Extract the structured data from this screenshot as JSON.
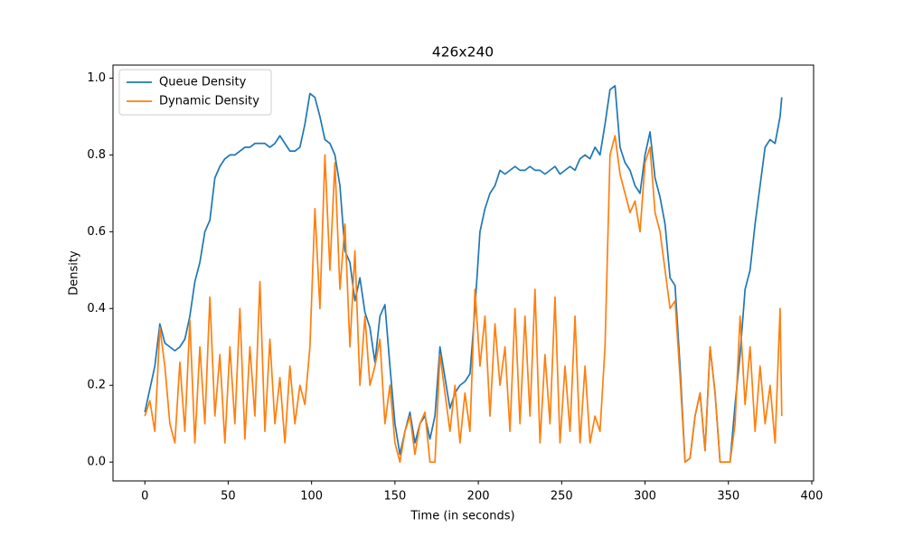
{
  "chart_data": {
    "type": "line",
    "title": "426x240",
    "x_label": "Time (in seconds)",
    "y_label": "Density",
    "x": [
      0,
      3,
      6,
      9,
      12,
      15,
      18,
      21,
      24,
      27,
      30,
      33,
      36,
      39,
      42,
      45,
      48,
      51,
      54,
      57,
      60,
      63,
      66,
      69,
      72,
      75,
      78,
      81,
      84,
      87,
      90,
      93,
      96,
      99,
      102,
      105,
      108,
      111,
      114,
      117,
      120,
      123,
      126,
      129,
      132,
      135,
      138,
      141,
      144,
      147,
      150,
      153,
      156,
      159,
      162,
      165,
      168,
      171,
      174,
      177,
      180,
      183,
      186,
      189,
      192,
      195,
      198,
      201,
      204,
      207,
      210,
      213,
      216,
      219,
      222,
      225,
      228,
      231,
      234,
      237,
      240,
      243,
      246,
      249,
      252,
      255,
      258,
      261,
      264,
      267,
      270,
      273,
      276,
      279,
      282,
      285,
      288,
      291,
      294,
      297,
      300,
      303,
      306,
      309,
      312,
      315,
      318,
      321,
      324,
      327,
      330,
      333,
      336,
      339,
      342,
      345,
      348,
      351,
      354,
      357,
      360,
      363,
      366,
      369,
      372,
      375,
      378,
      381,
      382
    ],
    "series": [
      {
        "name": "Queue Density",
        "color": "#1f77b4",
        "values": [
          0.13,
          0.19,
          0.25,
          0.36,
          0.31,
          0.3,
          0.29,
          0.3,
          0.32,
          0.38,
          0.47,
          0.52,
          0.6,
          0.63,
          0.74,
          0.77,
          0.79,
          0.8,
          0.8,
          0.81,
          0.82,
          0.82,
          0.83,
          0.83,
          0.83,
          0.82,
          0.83,
          0.85,
          0.83,
          0.81,
          0.81,
          0.82,
          0.88,
          0.96,
          0.95,
          0.9,
          0.84,
          0.83,
          0.8,
          0.72,
          0.55,
          0.52,
          0.42,
          0.48,
          0.39,
          0.35,
          0.26,
          0.38,
          0.41,
          0.25,
          0.1,
          0.02,
          0.08,
          0.13,
          0.05,
          0.1,
          0.12,
          0.06,
          0.12,
          0.3,
          0.22,
          0.14,
          0.18,
          0.2,
          0.21,
          0.23,
          0.4,
          0.6,
          0.66,
          0.7,
          0.72,
          0.76,
          0.75,
          0.76,
          0.77,
          0.76,
          0.76,
          0.77,
          0.76,
          0.76,
          0.75,
          0.76,
          0.77,
          0.75,
          0.76,
          0.77,
          0.76,
          0.79,
          0.8,
          0.79,
          0.82,
          0.8,
          0.88,
          0.97,
          0.98,
          0.82,
          0.78,
          0.76,
          0.72,
          0.7,
          0.8,
          0.86,
          0.74,
          0.69,
          0.62,
          0.48,
          0.46,
          0.25,
          0.0,
          0.01,
          0.12,
          0.18,
          0.03,
          0.3,
          0.18,
          0.0,
          0.0,
          0.0,
          0.15,
          0.28,
          0.45,
          0.5,
          0.62,
          0.72,
          0.82,
          0.84,
          0.83,
          0.9,
          0.95
        ]
      },
      {
        "name": "Dynamic Density",
        "color": "#ff7f0e",
        "values": [
          0.12,
          0.16,
          0.08,
          0.35,
          0.25,
          0.1,
          0.05,
          0.26,
          0.08,
          0.37,
          0.05,
          0.3,
          0.1,
          0.43,
          0.12,
          0.28,
          0.05,
          0.3,
          0.1,
          0.4,
          0.06,
          0.3,
          0.12,
          0.47,
          0.08,
          0.32,
          0.1,
          0.22,
          0.05,
          0.25,
          0.1,
          0.2,
          0.15,
          0.3,
          0.66,
          0.4,
          0.8,
          0.5,
          0.78,
          0.45,
          0.62,
          0.3,
          0.55,
          0.2,
          0.38,
          0.2,
          0.25,
          0.32,
          0.1,
          0.2,
          0.05,
          0.0,
          0.08,
          0.12,
          0.02,
          0.1,
          0.13,
          0.0,
          0.0,
          0.28,
          0.18,
          0.08,
          0.2,
          0.05,
          0.18,
          0.08,
          0.45,
          0.25,
          0.38,
          0.12,
          0.36,
          0.2,
          0.3,
          0.08,
          0.4,
          0.1,
          0.38,
          0.12,
          0.45,
          0.05,
          0.28,
          0.1,
          0.43,
          0.05,
          0.25,
          0.08,
          0.38,
          0.05,
          0.25,
          0.05,
          0.12,
          0.08,
          0.3,
          0.8,
          0.85,
          0.75,
          0.7,
          0.65,
          0.68,
          0.6,
          0.78,
          0.82,
          0.65,
          0.6,
          0.5,
          0.4,
          0.42,
          0.22,
          0.0,
          0.01,
          0.12,
          0.18,
          0.03,
          0.3,
          0.18,
          0.0,
          0.0,
          0.0,
          0.1,
          0.38,
          0.15,
          0.3,
          0.08,
          0.25,
          0.1,
          0.2,
          0.05,
          0.4,
          0.12
        ]
      }
    ],
    "xlim": [
      -19.1,
      401.1
    ],
    "ylim": [
      -0.049,
      1.034
    ],
    "xticks": [
      0,
      50,
      100,
      150,
      200,
      250,
      300,
      350,
      400
    ],
    "yticks": [
      {
        "value": 0,
        "label": "0.0"
      },
      {
        "value": 0.2,
        "label": "0.2"
      },
      {
        "value": 0.4,
        "label": "0.4"
      },
      {
        "value": 0.6,
        "label": "0.6"
      },
      {
        "value": 0.8,
        "label": "0.8"
      },
      {
        "value": 1,
        "label": "1.0"
      }
    ],
    "legend": "upper left",
    "grid": false
  }
}
